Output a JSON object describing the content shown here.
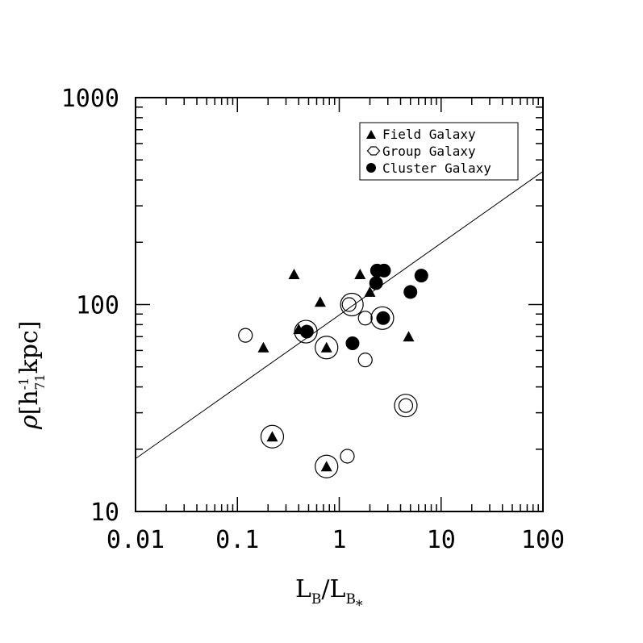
{
  "chart_data": {
    "type": "scatter",
    "xscale": "log",
    "yscale": "log",
    "xlim": [
      0.01,
      100
    ],
    "ylim": [
      10,
      1000
    ],
    "x_ticks": [
      "0.01",
      "0.1",
      "1",
      "10",
      "100"
    ],
    "y_ticks": [
      "10",
      "100",
      "1000"
    ],
    "xlabel": {
      "main": "L",
      "sub": "B",
      "sep": "/L",
      "sub2": "B",
      "star": "*"
    },
    "ylabel": {
      "rho": "ρ",
      "open": "[h",
      "sup": "-1",
      "sub": "71",
      "close": "kpc]"
    },
    "legend": {
      "position": "top-right",
      "entries": [
        "Field Galaxy",
        "Group Galaxy",
        "Cluster Galaxy"
      ]
    },
    "fit_line": {
      "x": [
        0.01,
        100
      ],
      "y": [
        18,
        440
      ]
    },
    "series": [
      {
        "name": "Field Galaxy",
        "marker": "filled-triangle",
        "points": [
          [
            0.18,
            62
          ],
          [
            0.36,
            140
          ],
          [
            0.65,
            103
          ],
          [
            1.6,
            140
          ],
          [
            2.0,
            115
          ],
          [
            4.8,
            70
          ],
          [
            0.22,
            23
          ],
          [
            0.75,
            62
          ],
          [
            0.75,
            16.5
          ],
          [
            0.4,
            76
          ]
        ]
      },
      {
        "name": "Group Galaxy",
        "marker": "open-circle",
        "points": [
          [
            0.12,
            71
          ],
          [
            1.25,
            100
          ],
          [
            1.8,
            86
          ],
          [
            1.8,
            54
          ],
          [
            1.2,
            18.5
          ],
          [
            4.5,
            32.5
          ]
        ]
      },
      {
        "name": "Cluster Galaxy",
        "marker": "filled-circle",
        "points": [
          [
            0.48,
            74
          ],
          [
            1.35,
            65
          ],
          [
            2.3,
            127
          ],
          [
            2.35,
            146
          ],
          [
            2.75,
            146
          ],
          [
            2.7,
            86
          ],
          [
            5.0,
            115
          ],
          [
            6.4,
            138
          ]
        ]
      }
    ],
    "ringed_points": [
      [
        0.47,
        74
      ],
      [
        1.33,
        100
      ],
      [
        2.65,
        86
      ],
      [
        0.75,
        62
      ],
      [
        4.5,
        32.5
      ],
      [
        0.22,
        23
      ],
      [
        0.75,
        16.5
      ]
    ]
  }
}
